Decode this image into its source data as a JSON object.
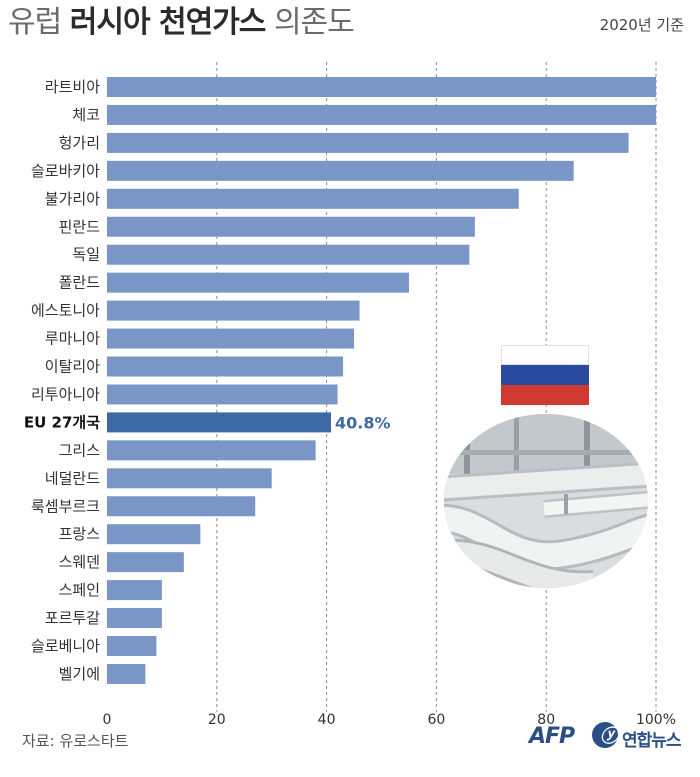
{
  "header": {
    "title_prefix": "유럽",
    "title_bold": "러시아 천연가스",
    "title_suffix": "의존도",
    "basis": "2020년 기준"
  },
  "footer": {
    "source": "자료: 유로스타트",
    "afp_logo": "AFP",
    "yna_logo": "연합뉴스"
  },
  "colors": {
    "bar": "#7a96c6",
    "highlight_bar": "#3d6aa6",
    "highlight_label": "#3d6aa6",
    "flag_white": "#ffffff",
    "flag_blue": "#2a4aa0",
    "flag_red": "#d0392f"
  },
  "icons": [
    "russia-flag-icon",
    "gas-pipeline-photo"
  ],
  "chart_data": {
    "type": "bar",
    "orientation": "horizontal",
    "categories": [
      "라트비아",
      "체코",
      "헝가리",
      "슬로바키아",
      "불가리아",
      "핀란드",
      "독일",
      "폴란드",
      "에스토니아",
      "루마니아",
      "이탈리아",
      "리투아니아",
      "EU 27개국",
      "그리스",
      "네덜란드",
      "룩셈부르크",
      "프랑스",
      "스웨덴",
      "스페인",
      "포르투갈",
      "슬로베니아",
      "벨기에"
    ],
    "values": [
      100,
      100,
      95,
      85,
      75,
      67,
      66,
      55,
      46,
      45,
      43,
      42,
      40.8,
      38,
      30,
      27,
      17,
      14,
      10,
      10,
      9,
      7
    ],
    "highlight_index": 12,
    "highlight_label": "40.8%",
    "xlim": [
      0,
      100
    ],
    "x_ticks": [
      "0",
      "20",
      "40",
      "60",
      "80",
      "100%"
    ],
    "grid": "vertical dashed"
  }
}
